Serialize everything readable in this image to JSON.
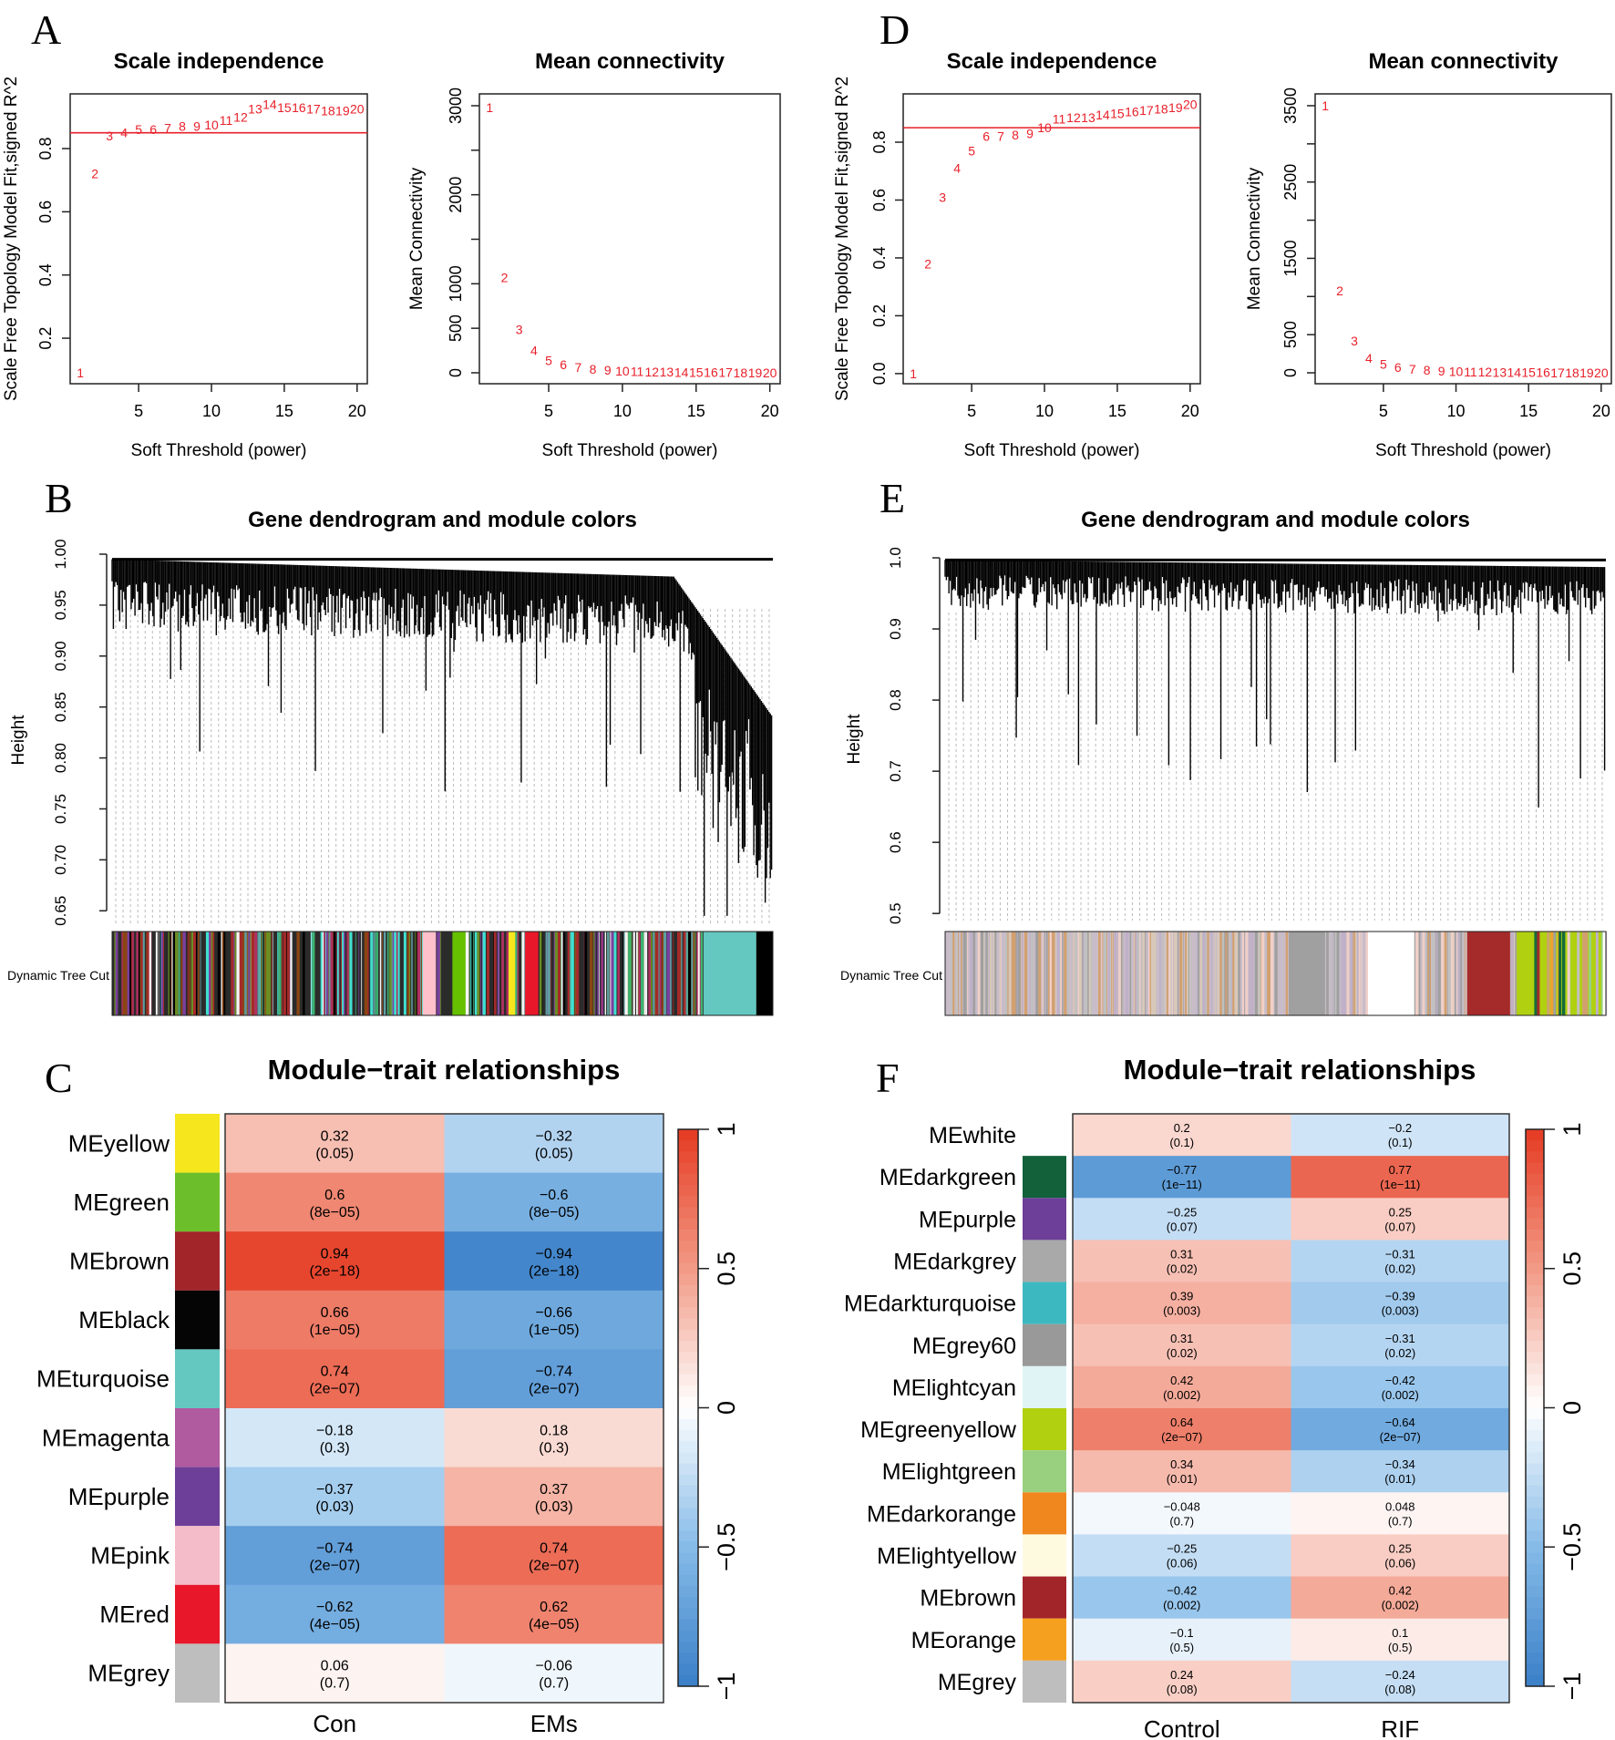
{
  "panel_letters": [
    "A",
    "B",
    "C",
    "D",
    "E",
    "F"
  ],
  "red_color": "#e8202a",
  "heat_colors": {
    "neg1": "#3a7fc7",
    "neg05": "#86bbe8",
    "zero": "#ffffff",
    "pos05": "#f29a86",
    "pos1": "#e53a22"
  },
  "chart_data": [
    {
      "id": "A-scale",
      "type": "scatter",
      "title": "Scale independence",
      "xlabel": "Soft Threshold (power)",
      "ylabel": "Scale Free Topology Model Fit,signed R^2",
      "x": [
        1,
        2,
        3,
        4,
        5,
        6,
        7,
        8,
        9,
        10,
        11,
        12,
        13,
        14,
        15,
        16,
        17,
        18,
        19,
        20
      ],
      "y": [
        0.09,
        0.72,
        0.84,
        0.85,
        0.86,
        0.86,
        0.865,
        0.87,
        0.87,
        0.875,
        0.89,
        0.9,
        0.925,
        0.94,
        0.93,
        0.93,
        0.925,
        0.92,
        0.92,
        0.925
      ],
      "point_labels": [
        "1",
        "2",
        "3",
        "4",
        "5",
        "6",
        "7",
        "8",
        "9",
        "10",
        "11",
        "12",
        "13",
        "14",
        "15",
        "16",
        "17",
        "18",
        "19",
        "20"
      ],
      "hline": 0.85,
      "xlim": [
        0.3,
        20.7
      ],
      "ylim": [
        0.056,
        0.973
      ],
      "xticks": [
        5,
        10,
        15,
        20
      ],
      "xtick_labels": [
        "5",
        "10",
        "15",
        "20"
      ],
      "yticks": [
        0.2,
        0.4,
        0.6,
        0.8
      ],
      "ytick_labels": [
        "0.2",
        "0.4",
        "0.6",
        "0.8"
      ]
    },
    {
      "id": "A-mean",
      "type": "scatter",
      "title": "Mean connectivity",
      "xlabel": "Soft Threshold (power)",
      "ylabel": "Mean Connectivity",
      "x": [
        1,
        2,
        3,
        4,
        5,
        6,
        7,
        8,
        9,
        10,
        11,
        12,
        13,
        14,
        15,
        16,
        17,
        18,
        19,
        20
      ],
      "y": [
        2980,
        1070,
        485,
        250,
        140,
        90,
        60,
        40,
        30,
        22,
        16,
        12,
        9,
        7,
        5,
        4,
        3,
        2,
        2,
        1
      ],
      "point_labels": [
        "1",
        "2",
        "3",
        "4",
        "5",
        "6",
        "7",
        "8",
        "9",
        "10",
        "11",
        "12",
        "13",
        "14",
        "15",
        "16",
        "17",
        "18",
        "19",
        "20"
      ],
      "xlim": [
        0.3,
        20.7
      ],
      "ylim": [
        -123,
        3133
      ],
      "xticks": [
        5,
        10,
        15,
        20
      ],
      "xtick_labels": [
        "5",
        "10",
        "15",
        "20"
      ],
      "yticks": [
        0,
        500,
        1000,
        1500,
        2000,
        2500,
        3000
      ],
      "ytick_labels": [
        "0",
        "500",
        "1000",
        "",
        "2000",
        "",
        "3000"
      ]
    },
    {
      "id": "D-scale",
      "type": "scatter",
      "title": "Scale independence",
      "xlabel": "Soft Threshold (power)",
      "ylabel": "Scale Free Topology Model Fit,signed R^2",
      "x": [
        1,
        2,
        3,
        4,
        5,
        6,
        7,
        8,
        9,
        10,
        11,
        12,
        13,
        14,
        15,
        16,
        17,
        18,
        19,
        20
      ],
      "y": [
        0.0,
        0.38,
        0.61,
        0.71,
        0.77,
        0.82,
        0.82,
        0.825,
        0.83,
        0.85,
        0.88,
        0.885,
        0.885,
        0.895,
        0.9,
        0.905,
        0.91,
        0.915,
        0.92,
        0.93
      ],
      "point_labels": [
        "1",
        "2",
        "3",
        "4",
        "5",
        "6",
        "7",
        "8",
        "9",
        "10",
        "11",
        "12",
        "13",
        "14",
        "15",
        "16",
        "17",
        "18",
        "19",
        "20"
      ],
      "hline": 0.85,
      "xlim": [
        0.3,
        20.7
      ],
      "ylim": [
        -0.035,
        0.967
      ],
      "xticks": [
        5,
        10,
        15,
        20
      ],
      "xtick_labels": [
        "5",
        "10",
        "15",
        "20"
      ],
      "yticks": [
        0,
        0.2,
        0.4,
        0.6,
        0.8
      ],
      "ytick_labels": [
        "0.0",
        "0.2",
        "0.4",
        "0.6",
        "0.8"
      ]
    },
    {
      "id": "D-mean",
      "type": "scatter",
      "title": "Mean connectivity",
      "xlabel": "Soft Threshold (power)",
      "ylabel": "Mean Connectivity",
      "x": [
        1,
        2,
        3,
        4,
        5,
        6,
        7,
        8,
        9,
        10,
        11,
        12,
        13,
        14,
        15,
        16,
        17,
        18,
        19,
        20
      ],
      "y": [
        3500,
        1075,
        420,
        190,
        115,
        70,
        50,
        35,
        25,
        18,
        13,
        10,
        8,
        6,
        5,
        4,
        3,
        2,
        2,
        1
      ],
      "point_labels": [
        "1",
        "2",
        "3",
        "4",
        "5",
        "6",
        "7",
        "8",
        "9",
        "10",
        "11",
        "12",
        "13",
        "14",
        "15",
        "16",
        "17",
        "18",
        "19",
        "20"
      ],
      "xlim": [
        0.3,
        20.7
      ],
      "ylim": [
        -143,
        3655
      ],
      "xticks": [
        5,
        10,
        15,
        20
      ],
      "xtick_labels": [
        "5",
        "10",
        "15",
        "20"
      ],
      "yticks": [
        0,
        500,
        1000,
        1500,
        2000,
        2500,
        3000,
        3500
      ],
      "ytick_labels": [
        "0",
        "500",
        "",
        "1500",
        "",
        "2500",
        "",
        "3500"
      ]
    },
    {
      "id": "B-dendro",
      "type": "dendrogram",
      "title": "Gene dendrogram and module colors",
      "ylabel": "Height",
      "color_row_label": "Dynamic Tree Cut",
      "ylim": [
        0.635,
        1.0
      ],
      "yticks": [
        0.65,
        0.7,
        0.75,
        0.8,
        0.85,
        0.9,
        0.95,
        1.0
      ],
      "ytick_labels": [
        "0.65",
        "0.70",
        "0.75",
        "0.80",
        "0.85",
        "0.90",
        "0.95",
        "1.00"
      ],
      "module_palette": [
        "#000000",
        "#a52a2a",
        "#40e0d0",
        "#6b8e23",
        "#5f9ea0",
        "#b03060",
        "#3cb371",
        "#8b4513",
        "#f5f5f5",
        "#7b3f9e",
        "#ffc0cb",
        "#66c000",
        "#f5e61e",
        "#e8172a",
        "#64c8c0"
      ]
    },
    {
      "id": "E-dendro",
      "type": "dendrogram",
      "title": "Gene dendrogram and module colors",
      "ylabel": "Height",
      "color_row_label": "Dynamic Tree Cut",
      "ylim": [
        0.49,
        1.0
      ],
      "yticks": [
        0.5,
        0.6,
        0.7,
        0.8,
        0.9,
        1.0
      ],
      "ytick_labels": [
        "0.5",
        "0.6",
        "0.7",
        "0.8",
        "0.9",
        "1.0"
      ],
      "module_palette": [
        "#bfb0c8",
        "#d8c8b8",
        "#c0c0c0",
        "#f0d0c8",
        "#d2a070",
        "#a0a0a0",
        "#ffffff",
        "#a52a2a",
        "#b0d010",
        "#156b3a",
        "#7b3f9e",
        "#f0a030",
        "#98d080"
      ]
    },
    {
      "id": "C-heat",
      "type": "heatmap",
      "title": "Module−trait relationships",
      "rows": [
        "MEyellow",
        "MEgreen",
        "MEbrown",
        "MEblack",
        "MEturquoise",
        "MEmagenta",
        "MEpurple",
        "MEpink",
        "MEred",
        "MEgrey"
      ],
      "row_colors": [
        "#f5e61e",
        "#6cbf2a",
        "#a2252a",
        "#050505",
        "#64c8c0",
        "#b05aa0",
        "#6d3f98",
        "#f4bcc8",
        "#e8172a",
        "#bebebe"
      ],
      "columns": [
        "Con",
        "EMs"
      ],
      "values": [
        [
          0.32,
          -0.32
        ],
        [
          0.6,
          -0.6
        ],
        [
          0.94,
          -0.94
        ],
        [
          0.66,
          -0.66
        ],
        [
          0.74,
          -0.74
        ],
        [
          -0.18,
          0.18
        ],
        [
          -0.37,
          0.37
        ],
        [
          -0.74,
          0.74
        ],
        [
          -0.62,
          0.62
        ],
        [
          0.06,
          -0.06
        ]
      ],
      "cell_labels": [
        [
          "0.32",
          "−0.32"
        ],
        [
          "0.6",
          "−0.6"
        ],
        [
          "0.94",
          "−0.94"
        ],
        [
          "0.66",
          "−0.66"
        ],
        [
          "0.74",
          "−0.74"
        ],
        [
          "−0.18",
          "0.18"
        ],
        [
          "−0.37",
          "0.37"
        ],
        [
          "−0.74",
          "0.74"
        ],
        [
          "−0.62",
          "0.62"
        ],
        [
          "0.06",
          "−0.06"
        ]
      ],
      "pvalues": [
        [
          "(0.05)",
          "(0.05)"
        ],
        [
          "(8e−05)",
          "(8e−05)"
        ],
        [
          "(2e−18)",
          "(2e−18)"
        ],
        [
          "(1e−05)",
          "(1e−05)"
        ],
        [
          "(2e−07)",
          "(2e−07)"
        ],
        [
          "(0.3)",
          "(0.3)"
        ],
        [
          "(0.03)",
          "(0.03)"
        ],
        [
          "(2e−07)",
          "(2e−07)"
        ],
        [
          "(4e−05)",
          "(4e−05)"
        ],
        [
          "(0.7)",
          "(0.7)"
        ]
      ],
      "colorbar": {
        "range": [
          -1,
          1
        ],
        "ticks": [
          1,
          0.5,
          0,
          -0.5,
          -1
        ],
        "tick_labels": [
          "1",
          "0.5",
          "0",
          "−0.5",
          "−1"
        ]
      }
    },
    {
      "id": "F-heat",
      "type": "heatmap",
      "title": "Module−trait relationships",
      "rows": [
        "MEwhite",
        "MEdarkgreen",
        "MEpurple",
        "MEdarkgrey",
        "MEdarkturquoise",
        "MEgrey60",
        "MElightcyan",
        "MEgreenyellow",
        "MElightgreen",
        "MEdarkorange",
        "MElightyellow",
        "MEbrown",
        "MEorange",
        "MEgrey"
      ],
      "row_colors": [
        "#ffffff",
        "#12613a",
        "#6d3f98",
        "#a9a9a9",
        "#3cb9c0",
        "#999999",
        "#e0f4f6",
        "#b0d010",
        "#98d080",
        "#f0861e",
        "#fefae0",
        "#a2252a",
        "#f5a01e",
        "#bebebe"
      ],
      "columns": [
        "Control",
        "RIF"
      ],
      "values": [
        [
          0.2,
          -0.2
        ],
        [
          -0.77,
          0.77
        ],
        [
          -0.25,
          0.25
        ],
        [
          0.31,
          -0.31
        ],
        [
          0.39,
          -0.39
        ],
        [
          0.31,
          -0.31
        ],
        [
          0.42,
          -0.42
        ],
        [
          0.64,
          -0.64
        ],
        [
          0.34,
          -0.34
        ],
        [
          -0.048,
          0.048
        ],
        [
          -0.25,
          0.25
        ],
        [
          -0.42,
          0.42
        ],
        [
          -0.1,
          0.1
        ],
        [
          0.24,
          -0.24
        ]
      ],
      "cell_labels": [
        [
          "0.2",
          "−0.2"
        ],
        [
          "−0.77",
          "0.77"
        ],
        [
          "−0.25",
          "0.25"
        ],
        [
          "0.31",
          "−0.31"
        ],
        [
          "0.39",
          "−0.39"
        ],
        [
          "0.31",
          "−0.31"
        ],
        [
          "0.42",
          "−0.42"
        ],
        [
          "0.64",
          "−0.64"
        ],
        [
          "0.34",
          "−0.34"
        ],
        [
          "−0.048",
          "0.048"
        ],
        [
          "−0.25",
          "0.25"
        ],
        [
          "−0.42",
          "0.42"
        ],
        [
          "−0.1",
          "0.1"
        ],
        [
          "0.24",
          "−0.24"
        ]
      ],
      "pvalues": [
        [
          "(0.1)",
          "(0.1)"
        ],
        [
          "(1e−11)",
          "(1e−11)"
        ],
        [
          "(0.07)",
          "(0.07)"
        ],
        [
          "(0.02)",
          "(0.02)"
        ],
        [
          "(0.003)",
          "(0.003)"
        ],
        [
          "(0.02)",
          "(0.02)"
        ],
        [
          "(0.002)",
          "(0.002)"
        ],
        [
          "(2e−07)",
          "(2e−07)"
        ],
        [
          "(0.01)",
          "(0.01)"
        ],
        [
          "(0.7)",
          "(0.7)"
        ],
        [
          "(0.06)",
          "(0.06)"
        ],
        [
          "(0.002)",
          "(0.002)"
        ],
        [
          "(0.5)",
          "(0.5)"
        ],
        [
          "(0.08)",
          "(0.08)"
        ]
      ],
      "colorbar": {
        "range": [
          -1,
          1
        ],
        "ticks": [
          1,
          0.5,
          0,
          -0.5,
          -1
        ],
        "tick_labels": [
          "1",
          "0.5",
          "0",
          "−0.5",
          "−1"
        ]
      }
    }
  ]
}
